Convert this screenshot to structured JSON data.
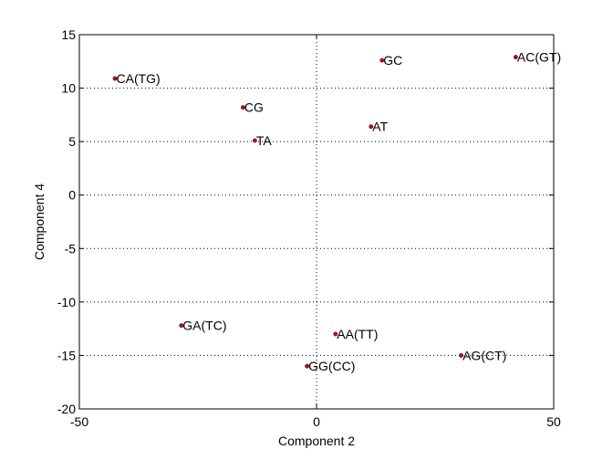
{
  "chart_data": {
    "type": "scatter",
    "xlabel": "Component 2",
    "ylabel": "Component 4",
    "xlim": [
      -50,
      50
    ],
    "ylim": [
      -20,
      15
    ],
    "xticks": [
      -50,
      0,
      50
    ],
    "yticks": [
      -20,
      -15,
      -10,
      -5,
      0,
      5,
      10,
      15
    ],
    "grid": "dotted at zero lines and y ticks",
    "marker_color": "#cc0000",
    "points": [
      {
        "label": "AC(GT)",
        "x": 42,
        "y": 12.9
      },
      {
        "label": "GC",
        "x": 13.8,
        "y": 12.6
      },
      {
        "label": "CA(TG)",
        "x": -42.5,
        "y": 10.9
      },
      {
        "label": "CG",
        "x": -15.5,
        "y": 8.2
      },
      {
        "label": "AT",
        "x": 11.5,
        "y": 6.4
      },
      {
        "label": "TA",
        "x": -13,
        "y": 5.1
      },
      {
        "label": "GA(TC)",
        "x": -28.5,
        "y": -12.2
      },
      {
        "label": "AA(TT)",
        "x": 4,
        "y": -13
      },
      {
        "label": "AG(CT)",
        "x": 30.5,
        "y": -15
      },
      {
        "label": "GG(CC)",
        "x": -2,
        "y": -16
      }
    ]
  }
}
